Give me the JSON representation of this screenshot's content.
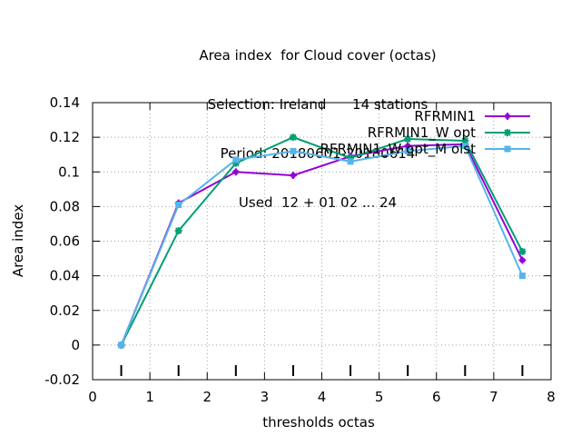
{
  "chart_data": {
    "type": "line",
    "title_lines": [
      "Area index  for Cloud cover (octas)",
      "Selection: Ireland      14 stations",
      "Period: 20180601-20180614",
      "Used  12 + 01 02 ... 24"
    ],
    "xlabel": "thresholds octas",
    "ylabel": "Area index",
    "xlim": [
      0,
      8
    ],
    "ylim": [
      -0.02,
      0.14
    ],
    "xticks": [
      "0",
      "1",
      "2",
      "3",
      "4",
      "5",
      "6",
      "7",
      "8"
    ],
    "yticks": [
      "-0.02",
      "0",
      "0.02",
      "0.04",
      "0.06",
      "0.08",
      "0.1",
      "0.12",
      "0.14"
    ],
    "grid": true,
    "legend_position": "top-right",
    "x": [
      0.5,
      1.5,
      2.5,
      3.5,
      4.5,
      5.5,
      6.5,
      7.5
    ],
    "series": [
      {
        "name": "RFRMIN1",
        "color": "#9400d3",
        "marker": "plus",
        "values": [
          0.0,
          0.082,
          0.1,
          0.098,
          0.109,
          0.115,
          0.116,
          0.049
        ]
      },
      {
        "name": "RFRMIN1_W opt",
        "color": "#009e73",
        "marker": "star",
        "values": [
          0.0,
          0.066,
          0.105,
          0.12,
          0.108,
          0.119,
          0.118,
          0.054
        ]
      },
      {
        "name": "RFRMIN1_W opt_M olst",
        "color": "#56b4e9",
        "marker": "box",
        "values": [
          0.0,
          0.081,
          0.107,
          0.112,
          0.106,
          0.112,
          0.115,
          0.04
        ]
      }
    ],
    "threshold_ticks_x": [
      0.5,
      1.5,
      2.5,
      3.5,
      4.5,
      5.5,
      6.5,
      7.5
    ]
  }
}
